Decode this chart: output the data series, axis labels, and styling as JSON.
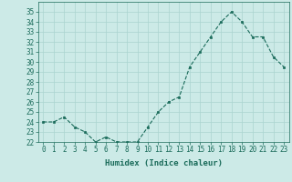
{
  "x": [
    0,
    1,
    2,
    3,
    4,
    5,
    6,
    7,
    8,
    9,
    10,
    11,
    12,
    13,
    14,
    15,
    16,
    17,
    18,
    19,
    20,
    21,
    22,
    23
  ],
  "y": [
    24,
    24,
    24.5,
    23.5,
    23,
    22,
    22.5,
    22,
    22,
    22,
    23.5,
    25,
    26,
    26.5,
    29.5,
    31,
    32.5,
    34,
    35,
    34,
    32.5,
    32.5,
    30.5,
    29.5
  ],
  "line_color": "#1a6b5a",
  "marker_color": "#1a6b5a",
  "bg_color": "#cceae7",
  "grid_color": "#aad4d0",
  "xlabel": "Humidex (Indice chaleur)",
  "ylim": [
    22,
    36
  ],
  "xlim": [
    -0.5,
    23.5
  ],
  "yticks": [
    22,
    23,
    24,
    25,
    26,
    27,
    28,
    29,
    30,
    31,
    32,
    33,
    34,
    35
  ],
  "xticks": [
    0,
    1,
    2,
    3,
    4,
    5,
    6,
    7,
    8,
    9,
    10,
    11,
    12,
    13,
    14,
    15,
    16,
    17,
    18,
    19,
    20,
    21,
    22,
    23
  ],
  "tick_fontsize": 5.5,
  "label_fontsize": 6.5
}
